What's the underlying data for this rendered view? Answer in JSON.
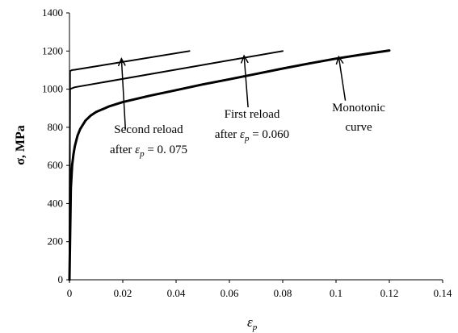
{
  "chart_data": {
    "type": "line",
    "xlabel": "ε_p",
    "xlabel_symbol": "ε",
    "xlabel_sub": "p",
    "ylabel": "σ, MPa",
    "xlim": [
      0,
      0.14
    ],
    "ylim": [
      0,
      1400
    ],
    "x_ticks": [
      "0",
      "0.02",
      "0.04",
      "0.06",
      "0.08",
      "0.1",
      "0.12",
      "0.14"
    ],
    "y_ticks": [
      "0",
      "200",
      "400",
      "600",
      "800",
      "1000",
      "1200",
      "1400"
    ],
    "grid": false,
    "series": [
      {
        "name": "Monotonic curve",
        "x": [
          0,
          0.0005,
          0.001,
          0.0015,
          0.002,
          0.003,
          0.004,
          0.006,
          0.008,
          0.01,
          0.015,
          0.02,
          0.03,
          0.04,
          0.05,
          0.06,
          0.07,
          0.08,
          0.09,
          0.1,
          0.11,
          0.12
        ],
        "y": [
          0,
          480,
          600,
          660,
          700,
          755,
          790,
          835,
          862,
          880,
          910,
          932,
          965,
          995,
          1025,
          1052,
          1080,
          1108,
          1135,
          1160,
          1182,
          1203
        ],
        "stroke_width": 3
      },
      {
        "name": "First reload after ε_p = 0.060",
        "x": [
          0,
          0.0002,
          0.001,
          0.002,
          0.08
        ],
        "y": [
          0,
          1000,
          1005,
          1010,
          1200
        ],
        "stroke_width": 2
      },
      {
        "name": "Second reload after ε_p = 0.075",
        "x": [
          0,
          0.0002,
          0.001,
          0.002,
          0.045
        ],
        "y": [
          0,
          1095,
          1100,
          1102,
          1200
        ],
        "stroke_width": 2
      }
    ],
    "annotations": [
      {
        "lines": [
          "Second reload",
          "after ε_p = 0. 075"
        ],
        "line1": "Second reload",
        "line2_prefix": "after ",
        "line2_symbol": "ε",
        "line2_sub": "p",
        "line2_value": " = 0. 075",
        "arrow_from": [
          0.021,
          790
        ],
        "arrow_to": [
          0.0195,
          1160
        ]
      },
      {
        "lines": [
          "First reload",
          "after ε_p = 0.060"
        ],
        "line1": "First reload",
        "line2_prefix": "after ",
        "line2_symbol": "ε",
        "line2_sub": "p",
        "line2_value": " = 0.060",
        "arrow_from": [
          0.067,
          905
        ],
        "arrow_to": [
          0.0655,
          1175
        ]
      },
      {
        "lines": [
          "Monotonic",
          "curve"
        ],
        "line1": "Monotonic",
        "line2": "curve",
        "arrow_from": [
          0.1035,
          940
        ],
        "arrow_to": [
          0.101,
          1170
        ]
      }
    ]
  }
}
